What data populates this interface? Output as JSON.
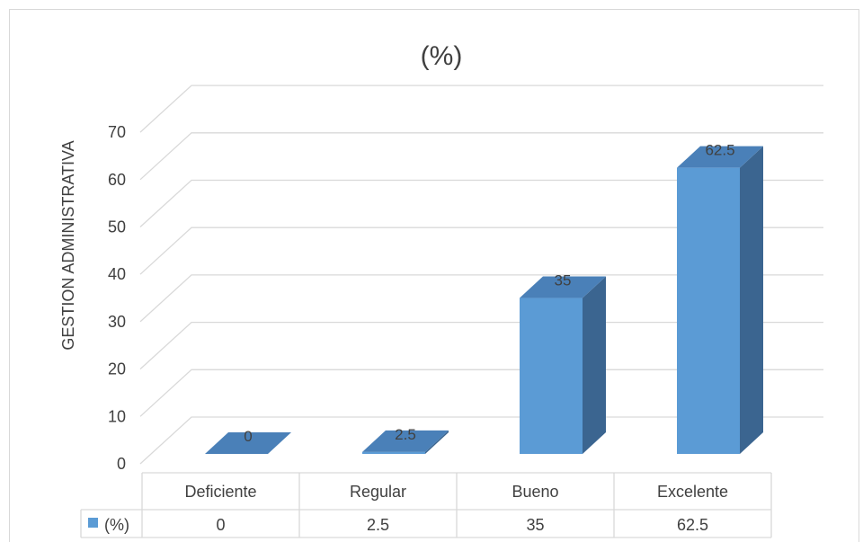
{
  "chart_data": {
    "type": "bar",
    "title": "(%)",
    "ylabel": "GESTION ADMINISTRATIVA",
    "xlabel": "",
    "ylim": [
      0,
      70
    ],
    "yticks": [
      "0",
      "10",
      "20",
      "30",
      "40",
      "50",
      "60",
      "70"
    ],
    "categories": [
      "Deficiente",
      "Regular",
      "Bueno",
      "Excelente"
    ],
    "series": [
      {
        "name": "(%)",
        "values": [
          0,
          2.5,
          35,
          62.5
        ],
        "labels": [
          "0",
          "2.5",
          "35",
          "62.5"
        ]
      }
    ],
    "data_table": true,
    "grid": true,
    "colors": {
      "front": "#5b9bd5",
      "top": "#4a80b8",
      "side": "#3b6590",
      "grid": "#d9d9d9",
      "text": "#404040"
    }
  }
}
